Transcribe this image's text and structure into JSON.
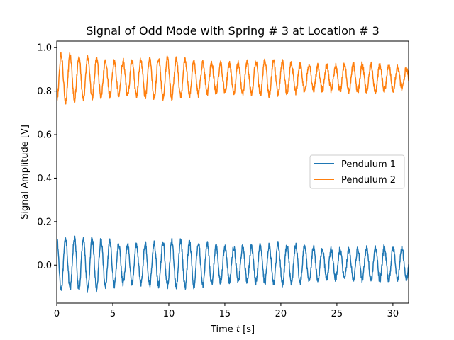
{
  "chart_data": {
    "type": "line",
    "title": "Signal of Odd Mode with Spring # 3 at Location # 3",
    "xlabel_prefix": "Time ",
    "xlabel_var": "t",
    "xlabel_suffix": " [s]",
    "ylabel": "Signal Amplitude [V]",
    "xlim": [
      0,
      31.4
    ],
    "ylim": [
      -0.175,
      1.03
    ],
    "xticks": [
      0,
      5,
      10,
      15,
      20,
      25,
      30
    ],
    "xtick_labels": [
      "0",
      "5",
      "10",
      "15",
      "20",
      "25",
      "30"
    ],
    "yticks": [
      0.0,
      0.2,
      0.4,
      0.6,
      0.8,
      1.0
    ],
    "ytick_labels": [
      "0.0",
      "0.2",
      "0.4",
      "0.6",
      "0.8",
      "1.0"
    ],
    "grid": false,
    "legend_position": "center-right",
    "series": [
      {
        "name": "Pendulum 1",
        "color": "#1f77b4",
        "model": {
          "offset": 0.005,
          "amplitude_start": 0.11,
          "amplitude_end": 0.065,
          "period": 0.79,
          "phase": 1.57
        }
      },
      {
        "name": "Pendulum 2",
        "color": "#ff7f0e",
        "model": {
          "offset": 0.86,
          "amplitude_start": 0.095,
          "amplitude_end": 0.05,
          "period": 0.79,
          "phase": -1.57
        }
      }
    ]
  }
}
